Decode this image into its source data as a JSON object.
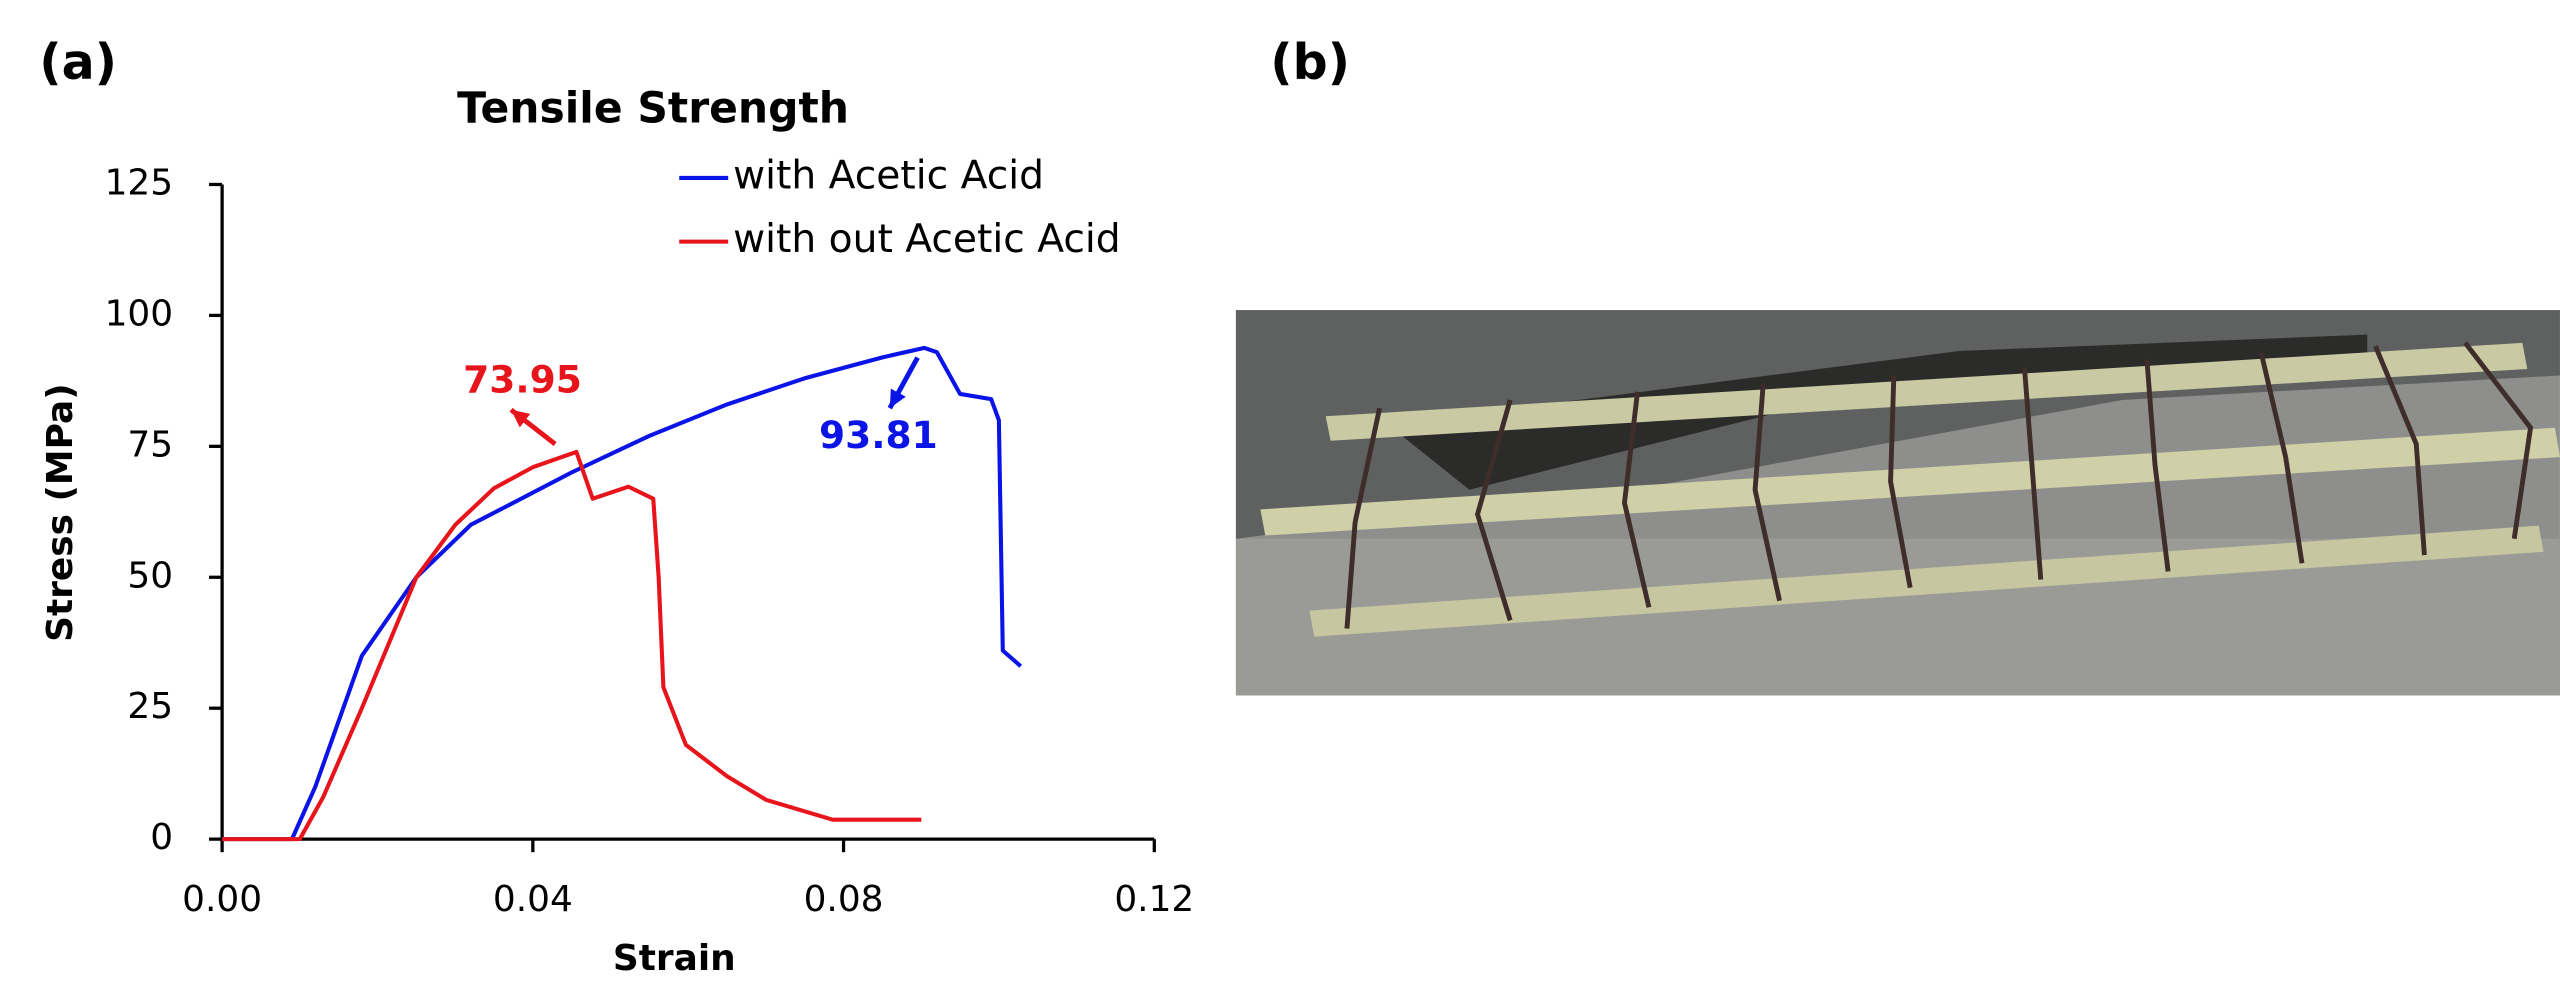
{
  "panels": [
    "(a)",
    "(b)"
  ],
  "chart_data": {
    "type": "line",
    "title": "Tensile Strength",
    "x_label": "Strain",
    "y_label": "Stress (MPa)",
    "xlim": [
      0,
      0.12
    ],
    "xticks": [
      {
        "value": 0,
        "label": "0.00"
      },
      0.04,
      0.08,
      0.12
    ],
    "ylim": [
      0,
      125
    ],
    "yticks": [
      0,
      25,
      50,
      75,
      100,
      125
    ],
    "series": [
      {
        "name": "with Acetic Acid",
        "color": "#0a14e6",
        "x": [
          0,
          0.009,
          0.012,
          0.018,
          0.025,
          0.032,
          0.045,
          0.055,
          0.065,
          0.075,
          0.085,
          0.0904,
          0.092,
          0.095,
          0.099,
          0.1,
          0.1005,
          0.1028
        ],
        "values": [
          0,
          0,
          10,
          35,
          50,
          60,
          70,
          77,
          83,
          88,
          92,
          93.81,
          93,
          85,
          84,
          80,
          36,
          33
        ]
      },
      {
        "name": "with out Acetic Acid",
        "color": "#e8141c",
        "x": [
          0,
          0.01,
          0.013,
          0.018,
          0.025,
          0.03,
          0.035,
          0.04,
          0.0456,
          0.0477,
          0.0523,
          0.0555,
          0.0562,
          0.0568,
          0.0597,
          0.065,
          0.07,
          0.0786,
          0.09
        ],
        "values": [
          0,
          0,
          8,
          25,
          50,
          60,
          67,
          71,
          73.95,
          65,
          67.3,
          65,
          50,
          29,
          18,
          12,
          7.5,
          3.7,
          3.7
        ]
      }
    ],
    "annotations": [
      {
        "text": "73.95",
        "color": "#e8141c"
      },
      {
        "text": "93.81",
        "color": "#0a14e6"
      }
    ],
    "legend": "upper right"
  }
}
